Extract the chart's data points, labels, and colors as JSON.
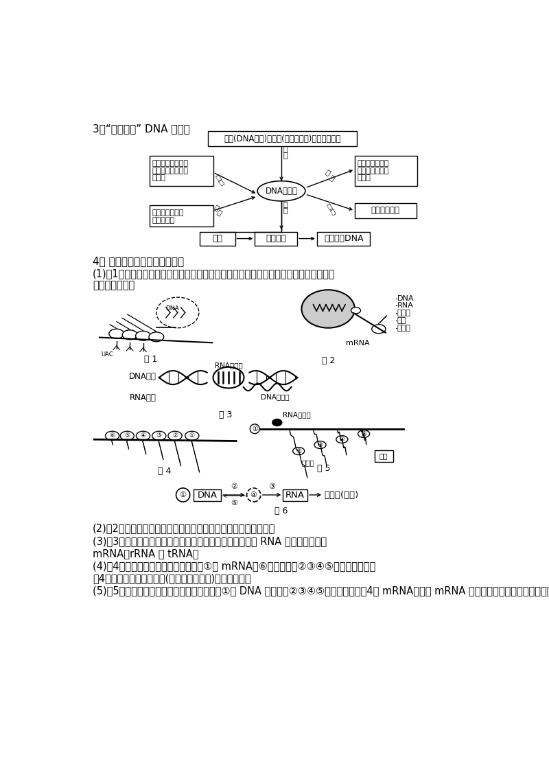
{
  "bg_color": "#ffffff",
  "title3": "3．“六处思考” DNA 的复制",
  "title4": "4． 基因表达过程中的重要图解",
  "para1": "(1)图1表示真核生物核基因的表达过程。转录在细胞核中进行，翻译在核糖体上进行，两",
  "para1b": "者不同时进行。",
  "para2": "(2)图2表示原核生物基因的表达过程。转录和翻译两者同时进行。",
  "para3": "(3)图3表示转录过程。转录的方向是从左向右，嫂化的酶是 RNA 聚合酶，产物是",
  "para3b": "mRNA、rRNA 和 tRNA。",
  "para4": "(4)图4表示真核细胞的翻译过程。图中①是 mRNA，⑥是核糖体，②③④⑤表示正在合成的",
  "para4b": "的4条多肽链，翻译的方向(核糖体移动方向)是自右向左。",
  "para5": "(5)图5表示原核细胞的转录和翻译过程，图中①是 DNA 模板链，②③④⑤表示正在合成的4条 mRNA，每条 mRNA 上可结合多个核糖体，在核糖体上同时进行翻译过程。"
}
